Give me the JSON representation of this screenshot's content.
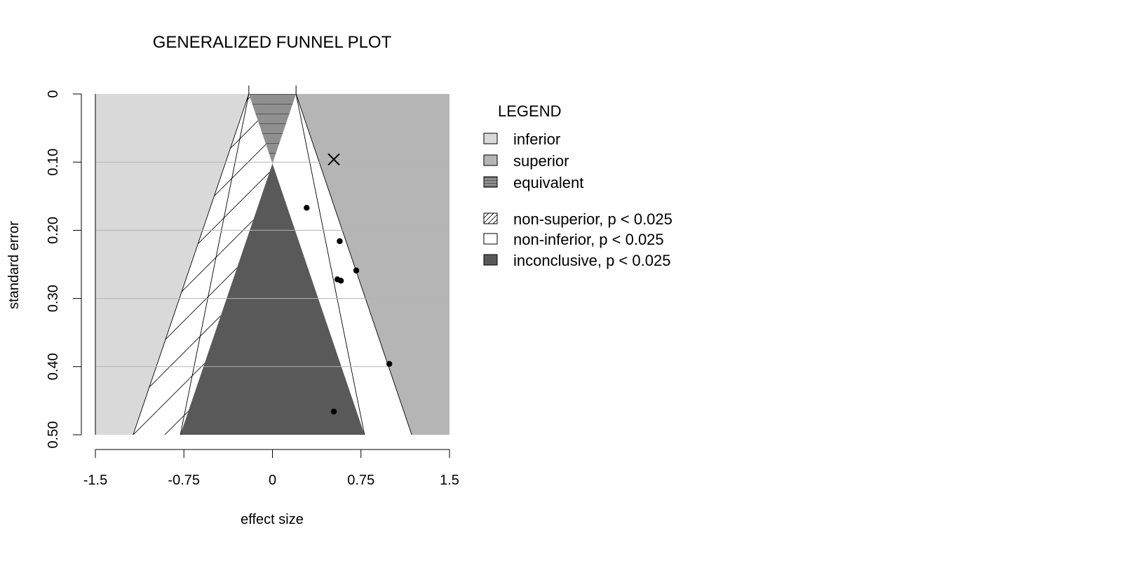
{
  "chart_data": {
    "type": "scatter",
    "title": "GENERALIZED FUNNEL PLOT",
    "xlabel": "effect size",
    "ylabel": "standard error",
    "xlim": [
      -1.5,
      1.5
    ],
    "ylim": [
      0,
      0.5
    ],
    "y_reversed": true,
    "x_ticks": [
      -1.5,
      -0.75,
      0,
      0.75,
      1.5
    ],
    "x_tick_labels": [
      "-1.5",
      "-0.75",
      "0",
      "0.75",
      "1.5"
    ],
    "y_ticks": [
      0,
      0.1,
      0.2,
      0.3,
      0.4,
      0.5
    ],
    "y_tick_labels": [
      "0",
      "0.10",
      "0.20",
      "0.30",
      "0.40",
      "0.50"
    ],
    "grid": "horizontal",
    "equivalence_margins": [
      -0.2,
      0.2
    ],
    "significance_z": 1.96,
    "points": [
      {
        "x": 0.29,
        "y": 0.167
      },
      {
        "x": 0.57,
        "y": 0.216
      },
      {
        "x": 0.71,
        "y": 0.259
      },
      {
        "x": 0.55,
        "y": 0.272
      },
      {
        "x": 0.58,
        "y": 0.274
      },
      {
        "x": 0.99,
        "y": 0.396
      },
      {
        "x": 0.52,
        "y": 0.466
      }
    ],
    "pooled_estimate": {
      "x": 0.52,
      "y": 0.096,
      "marker": "cross"
    },
    "legend": {
      "title": "LEGEND",
      "position": "right",
      "items": [
        {
          "label": "inferior",
          "fill": "#d9d9d9",
          "pattern": "none"
        },
        {
          "label": "superior",
          "fill": "#b5b5b5",
          "pattern": "none"
        },
        {
          "label": "equivalent",
          "fill": "#8f8f8f",
          "pattern": "horizontal"
        },
        {
          "label": "non-superior, p < 0.025",
          "fill": "#ffffff",
          "pattern": "diagonal"
        },
        {
          "label": "non-inferior, p < 0.025",
          "fill": "#ffffff",
          "pattern": "none"
        },
        {
          "label": "inconclusive, p < 0.025",
          "fill": "#595959",
          "pattern": "none"
        }
      ]
    },
    "colors": {
      "inferior": "#d9d9d9",
      "superior": "#b5b5b5",
      "equivalent": "#8f8f8f",
      "inconclusive": "#595959",
      "grid": "#b3b3b3"
    }
  }
}
